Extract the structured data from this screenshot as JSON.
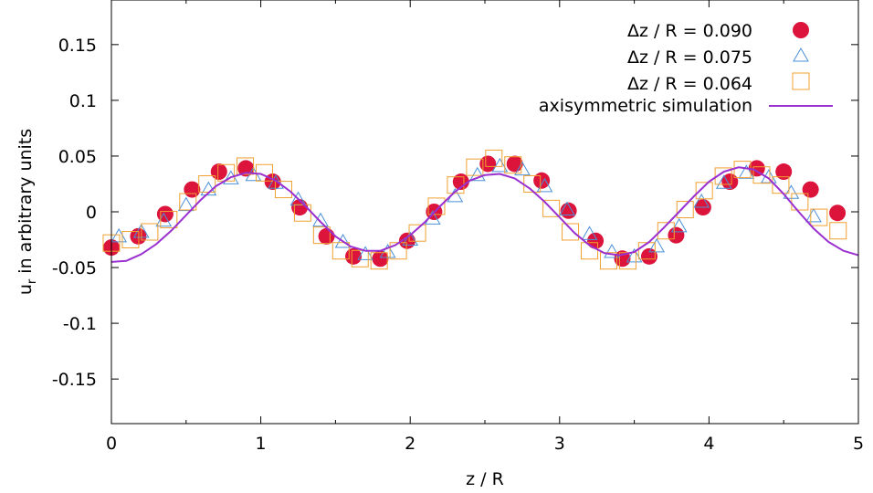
{
  "chart_data": {
    "type": "scatter",
    "xlabel": "z / R",
    "ylabel_main": "u",
    "ylabel_sub": "r",
    "ylabel_rest": " in arbitrary units",
    "xlim": [
      0,
      5
    ],
    "ylim": [
      -0.19,
      0.19
    ],
    "x_ticks": [
      "0",
      "1",
      "2",
      "3",
      "4",
      "5"
    ],
    "y_ticks": [
      "-0.15",
      "-0.1",
      "-0.05",
      "0",
      "0.05",
      "0.1",
      "0.15"
    ],
    "grid": false,
    "legend_position": "top-right",
    "colors": {
      "series_090": "#dc143c",
      "series_075": "#4a90d9",
      "series_064": "#f0a030",
      "simulation": "#9b30d0"
    },
    "series": [
      {
        "name": "Δz / R = 0.090",
        "marker": "filled-circle",
        "x": [
          0.0,
          0.18,
          0.36,
          0.54,
          0.72,
          0.9,
          1.08,
          1.26,
          1.44,
          1.62,
          1.8,
          1.98,
          2.16,
          2.34,
          2.52,
          2.7,
          2.88,
          3.06,
          3.24,
          3.42,
          3.6,
          3.78,
          3.96,
          4.14,
          4.32,
          4.5,
          4.68,
          4.86
        ],
        "y": [
          -0.032,
          -0.022,
          -0.002,
          0.02,
          0.036,
          0.039,
          0.027,
          0.004,
          -0.022,
          -0.04,
          -0.042,
          -0.026,
          0.0,
          0.027,
          0.043,
          0.043,
          0.028,
          0.001,
          -0.026,
          -0.042,
          -0.04,
          -0.021,
          0.004,
          0.027,
          0.039,
          0.036,
          0.02,
          -0.001
        ]
      },
      {
        "name": "Δz / R = 0.075",
        "marker": "open-triangle",
        "x": [
          0.05,
          0.2,
          0.35,
          0.5,
          0.65,
          0.8,
          0.95,
          1.1,
          1.25,
          1.4,
          1.55,
          1.7,
          1.85,
          2.0,
          2.15,
          2.3,
          2.45,
          2.6,
          2.75,
          2.9,
          3.05,
          3.2,
          3.35,
          3.5,
          3.65,
          3.8,
          3.95,
          4.1,
          4.25,
          4.4,
          4.55,
          4.7
        ],
        "y": [
          -0.022,
          -0.018,
          -0.008,
          0.006,
          0.02,
          0.03,
          0.033,
          0.026,
          0.011,
          -0.008,
          -0.027,
          -0.038,
          -0.036,
          -0.025,
          -0.006,
          0.014,
          0.033,
          0.041,
          0.038,
          0.023,
          0.002,
          -0.02,
          -0.036,
          -0.04,
          -0.031,
          -0.013,
          0.009,
          0.026,
          0.035,
          0.031,
          0.017,
          -0.004
        ]
      },
      {
        "name": "Δz / R = 0.064",
        "marker": "open-square",
        "x": [
          0.0,
          0.128,
          0.256,
          0.384,
          0.512,
          0.64,
          0.768,
          0.896,
          1.024,
          1.152,
          1.28,
          1.408,
          1.536,
          1.664,
          1.792,
          1.92,
          2.048,
          2.176,
          2.304,
          2.432,
          2.56,
          2.688,
          2.816,
          2.944,
          3.072,
          3.2,
          3.328,
          3.456,
          3.584,
          3.712,
          3.84,
          3.968,
          4.096,
          4.224,
          4.352,
          4.48,
          4.608,
          4.736,
          4.864
        ],
        "y": [
          -0.028,
          -0.025,
          -0.018,
          -0.007,
          0.009,
          0.025,
          0.035,
          0.041,
          0.035,
          0.02,
          -0.001,
          -0.021,
          -0.035,
          -0.042,
          -0.044,
          -0.035,
          -0.019,
          0.005,
          0.024,
          0.04,
          0.048,
          0.042,
          0.025,
          0.003,
          -0.018,
          -0.035,
          -0.044,
          -0.044,
          -0.035,
          -0.017,
          0.002,
          0.019,
          0.032,
          0.038,
          0.033,
          0.024,
          0.009,
          -0.005,
          -0.017
        ]
      },
      {
        "name": "axisymmetric simulation",
        "marker": "line",
        "x": [
          0.0,
          0.1,
          0.2,
          0.3,
          0.4,
          0.5,
          0.6,
          0.7,
          0.8,
          0.9,
          1.0,
          1.1,
          1.2,
          1.3,
          1.4,
          1.5,
          1.6,
          1.7,
          1.8,
          1.9,
          2.0,
          2.1,
          2.2,
          2.3,
          2.4,
          2.5,
          2.6,
          2.7,
          2.8,
          2.9,
          3.0,
          3.1,
          3.2,
          3.3,
          3.4,
          3.5,
          3.6,
          3.7,
          3.8,
          3.9,
          4.0,
          4.1,
          4.2,
          4.3,
          4.4,
          4.5,
          4.6,
          4.7,
          4.8,
          4.9,
          5.0
        ],
        "y": [
          -0.045,
          -0.044,
          -0.038,
          -0.029,
          -0.017,
          -0.003,
          0.011,
          0.023,
          0.031,
          0.035,
          0.034,
          0.028,
          0.018,
          0.005,
          -0.009,
          -0.022,
          -0.031,
          -0.035,
          -0.035,
          -0.03,
          -0.021,
          -0.009,
          0.005,
          0.018,
          0.028,
          0.033,
          0.034,
          0.03,
          0.021,
          0.009,
          -0.005,
          -0.019,
          -0.03,
          -0.037,
          -0.039,
          -0.036,
          -0.027,
          -0.014,
          0.0,
          0.014,
          0.027,
          0.036,
          0.04,
          0.038,
          0.03,
          0.016,
          0.0,
          -0.015,
          -0.027,
          -0.035,
          -0.039
        ]
      }
    ]
  }
}
